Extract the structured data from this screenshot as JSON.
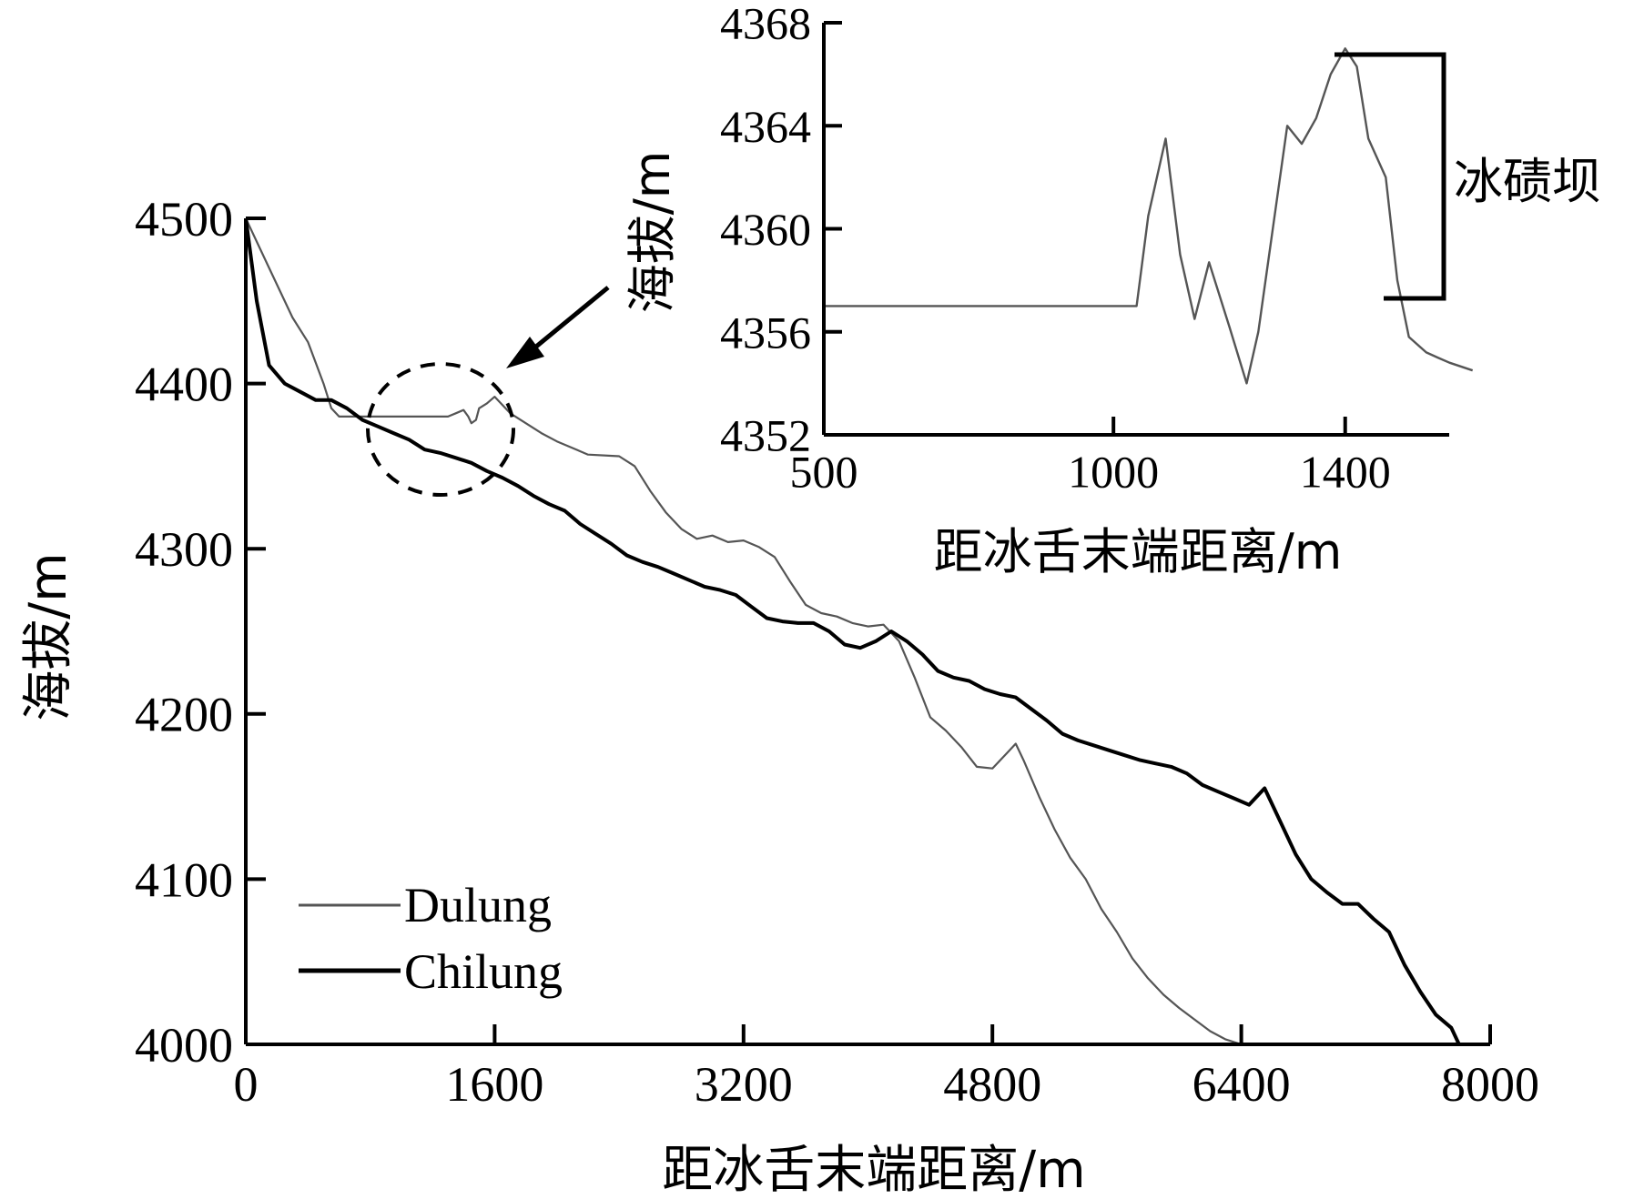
{
  "colors": {
    "axis": "#000000",
    "dulung": "#555555",
    "chilung": "#000000",
    "background": "#ffffff"
  },
  "chart_data": [
    {
      "type": "line",
      "xlabel": "距冰舌末端距离/m",
      "ylabel": "海拔/m",
      "xlim": [
        0,
        8000
      ],
      "ylim": [
        4000,
        4500
      ],
      "xticks": [
        "0",
        "1600",
        "3200",
        "4800",
        "6400",
        "8000"
      ],
      "yticks": [
        "4000",
        "4100",
        "4200",
        "4300",
        "4400",
        "4500"
      ],
      "grid": false,
      "legend": "bottom-left",
      "series": [
        {
          "name": "Dulung",
          "x": [
            0,
            150,
            300,
            400,
            500,
            550,
            600,
            700,
            900,
            1100,
            1300,
            1350,
            1400,
            1430,
            1450,
            1480,
            1500,
            1550,
            1600,
            1700,
            1800,
            1900,
            2000,
            2200,
            2400,
            2500,
            2600,
            2700,
            2800,
            2900,
            3000,
            3100,
            3200,
            3300,
            3400,
            3500,
            3600,
            3700,
            3800,
            3900,
            4000,
            4100,
            4200,
            4300,
            4400,
            4500,
            4600,
            4700,
            4800,
            4900,
            4950,
            5000,
            5100,
            5200,
            5300,
            5400,
            5500,
            5600,
            5700,
            5800,
            5900,
            6000,
            6100,
            6200,
            6300,
            6400,
            6500,
            6600
          ],
          "y": [
            4500,
            4470,
            4440,
            4425,
            4400,
            4385,
            4380,
            4380,
            4380,
            4380,
            4380,
            4382,
            4384,
            4380,
            4376,
            4378,
            4385,
            4388,
            4392,
            4382,
            4376,
            4370,
            4365,
            4357,
            4356,
            4350,
            4335,
            4322,
            4312,
            4306,
            4308,
            4304,
            4305,
            4301,
            4295,
            4280,
            4266,
            4261,
            4259,
            4255,
            4253,
            4254,
            4244,
            4222,
            4198,
            4190,
            4180,
            4168,
            4167,
            4177,
            4182,
            4172,
            4150,
            4130,
            4113,
            4100,
            4082,
            4068,
            4052,
            4040,
            4030,
            4022,
            4015,
            4008,
            4003,
            4000,
            4000,
            4000
          ]
        },
        {
          "name": "Chilung",
          "x": [
            0,
            70,
            150,
            250,
            350,
            450,
            550,
            650,
            750,
            850,
            950,
            1050,
            1150,
            1250,
            1350,
            1450,
            1550,
            1650,
            1750,
            1850,
            1950,
            2050,
            2150,
            2250,
            2350,
            2450,
            2550,
            2650,
            2750,
            2850,
            2950,
            3050,
            3150,
            3250,
            3350,
            3450,
            3550,
            3650,
            3750,
            3850,
            3950,
            4050,
            4150,
            4250,
            4350,
            4450,
            4550,
            4650,
            4750,
            4850,
            4950,
            5050,
            5150,
            5250,
            5350,
            5450,
            5550,
            5650,
            5750,
            5850,
            5950,
            6050,
            6150,
            6250,
            6350,
            6450,
            6550,
            6650,
            6750,
            6850,
            6950,
            7050,
            7150,
            7250,
            7350,
            7450,
            7550,
            7650,
            7750,
            7800,
            7850,
            8000
          ],
          "y": [
            4500,
            4450,
            4411,
            4400,
            4395,
            4390,
            4390,
            4385,
            4378,
            4374,
            4370,
            4366,
            4360,
            4358,
            4355,
            4352,
            4347,
            4343,
            4338,
            4332,
            4327,
            4323,
            4315,
            4309,
            4303,
            4296,
            4292,
            4289,
            4285,
            4281,
            4277,
            4275,
            4272,
            4265,
            4258,
            4256,
            4255,
            4255,
            4250,
            4242,
            4240,
            4244,
            4250,
            4244,
            4236,
            4226,
            4222,
            4220,
            4215,
            4212,
            4210,
            4203,
            4196,
            4188,
            4184,
            4181,
            4178,
            4175,
            4172,
            4170,
            4168,
            4164,
            4157,
            4153,
            4149,
            4145,
            4155,
            4135,
            4115,
            4100,
            4092,
            4085,
            4085,
            4076,
            4068,
            4048,
            4032,
            4018,
            4010,
            4000,
            4000,
            4000
          ]
        }
      ]
    },
    {
      "type": "line",
      "xlabel": "距冰舌末端距离/m",
      "ylabel": "海拔/m",
      "xlim": [
        500,
        1600
      ],
      "ylim": [
        4352,
        4368
      ],
      "xticks": [
        "500",
        "1000",
        "1400"
      ],
      "yticks": [
        "4352",
        "4356",
        "4360",
        "4364",
        "4368"
      ],
      "grid": false,
      "annotation": "冰碛坝",
      "series": [
        {
          "name": "Dulung",
          "x": [
            500,
            1040,
            1060,
            1090,
            1115,
            1140,
            1165,
            1200,
            1230,
            1250,
            1300,
            1325,
            1350,
            1375,
            1400,
            1420,
            1440,
            1470,
            1490,
            1510,
            1540,
            1560,
            1580,
            1620
          ],
          "y": [
            4357,
            4357,
            4360.5,
            4363.5,
            4359,
            4356.5,
            4358.7,
            4356.2,
            4354,
            4356,
            4364,
            4363.3,
            4364.3,
            4366,
            4367,
            4366.3,
            4363.5,
            4362,
            4358,
            4355.8,
            4355.2,
            4355,
            4354.8,
            4354.5
          ]
        }
      ]
    }
  ]
}
